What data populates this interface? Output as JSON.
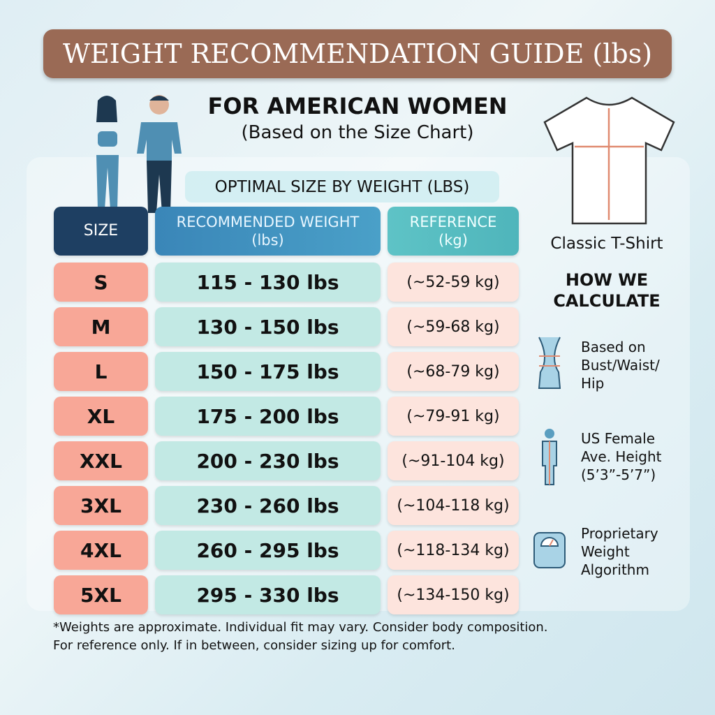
{
  "header": {
    "title": "WEIGHT RECOMMENDATION GUIDE (lbs)",
    "subtitle": "FOR AMERICAN WOMEN",
    "subtitle2": "(Based on the Size Chart)"
  },
  "table": {
    "caption": "OPTIMAL SIZE BY WEIGHT (LBS)",
    "columns": [
      [
        "SIZE"
      ],
      [
        "RECOMMENDED WEIGHT",
        "(lbs)"
      ],
      [
        "REFERENCE",
        "(kg)"
      ]
    ],
    "rows": [
      [
        "S",
        "115 - 130 lbs",
        "(~52-59 kg)"
      ],
      [
        "M",
        "130 - 150 lbs",
        "(~59-68 kg)"
      ],
      [
        "L",
        "150 - 175 lbs",
        "(~68-79 kg)"
      ],
      [
        "XL",
        "175 - 200 lbs",
        "(~79-91 kg)"
      ],
      [
        "XXL",
        "200 - 230 lbs",
        "(~91-104 kg)"
      ],
      [
        "3XL",
        "230 - 260 lbs",
        "(~104-118 kg)"
      ],
      [
        "4XL",
        "260 - 295 lbs",
        "(~118-134 kg)"
      ],
      [
        "5XL",
        "295 - 330 lbs",
        "(~134-150 kg)"
      ]
    ]
  },
  "side": {
    "shirt_label": "Classic T-Shirt",
    "how_title": [
      "HOW WE",
      "CALCULATE"
    ],
    "items": [
      [
        "Based on",
        "Bust/Waist/",
        "Hip"
      ],
      [
        "US Female",
        "Ave. Height",
        "(5’3”-5’7”)"
      ],
      [
        "Proprietary",
        "Weight",
        "Algorithm"
      ]
    ]
  },
  "footnote": [
    "*Weights are approximate. Individual fit may vary. Consider body composition.",
    "For reference only. If in between, consider sizing up for comfort."
  ]
}
